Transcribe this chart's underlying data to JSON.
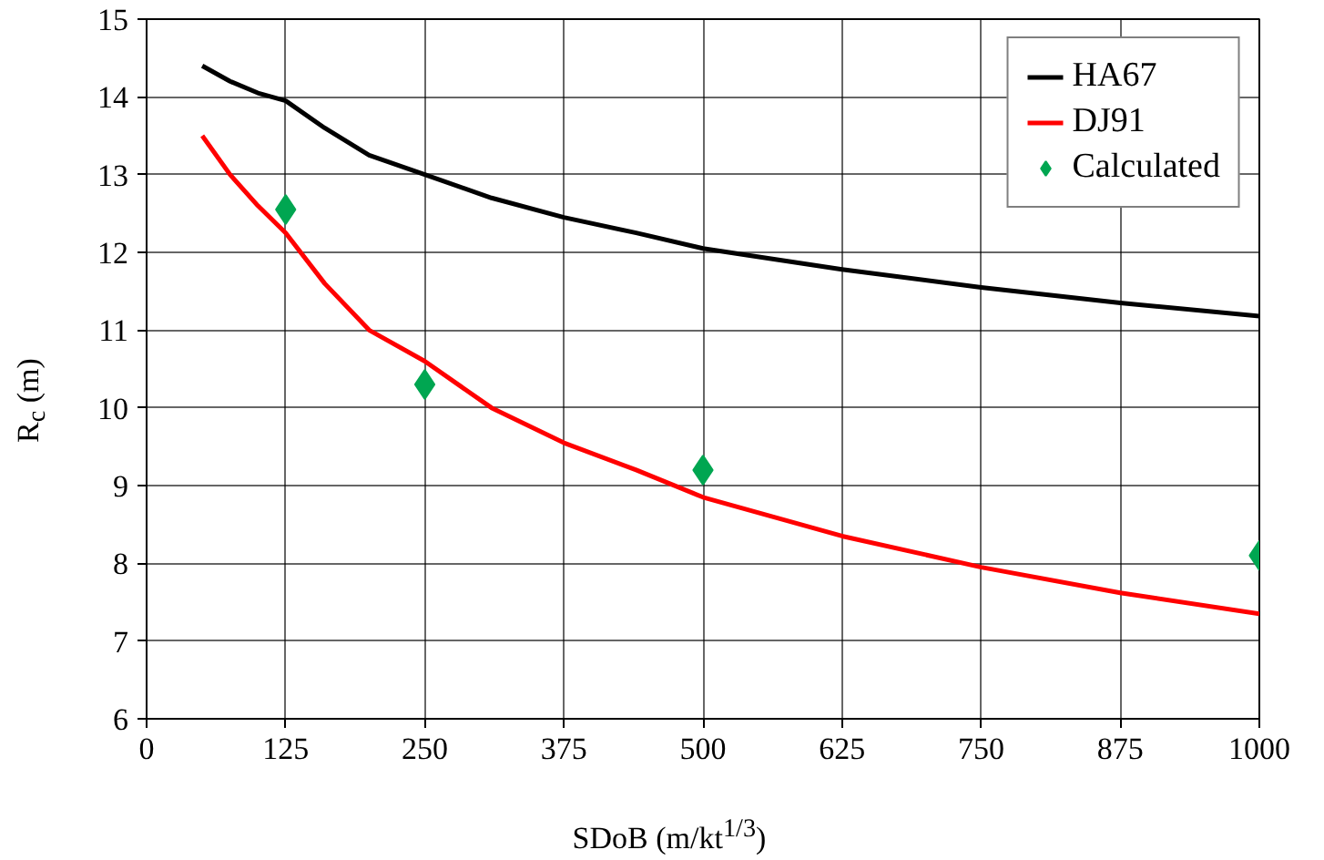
{
  "chart_data": {
    "type": "line",
    "xlabel": "SDoB (m/kt$^{1/3}$)",
    "ylabel": "R$_{c}$ (m)",
    "xlim": [
      0,
      1000
    ],
    "xticks": [
      0,
      125,
      250,
      375,
      500,
      625,
      750,
      875,
      1000
    ],
    "ylim": [
      6,
      15
    ],
    "yticks": [
      6,
      7,
      8,
      9,
      10,
      11,
      12,
      13,
      14,
      15
    ],
    "grid": true,
    "legend": "top right",
    "series": [
      {
        "name": "HA67",
        "color": "#000000",
        "x": [
          50,
          75,
          100,
          125,
          160,
          200,
          250,
          310,
          375,
          440,
          500,
          625,
          750,
          875,
          1000
        ],
        "values": [
          14.4,
          14.2,
          14.05,
          13.95,
          13.6,
          13.25,
          13.0,
          12.7,
          12.45,
          12.25,
          12.05,
          11.78,
          11.55,
          11.35,
          11.18
        ]
      },
      {
        "name": "DJ91",
        "color": "#ff0000",
        "x": [
          50,
          75,
          100,
          125,
          160,
          200,
          250,
          310,
          375,
          440,
          500,
          625,
          750,
          875,
          1000
        ],
        "values": [
          13.5,
          13.0,
          12.6,
          12.25,
          11.6,
          11.0,
          10.6,
          10.0,
          9.55,
          9.2,
          8.85,
          8.35,
          7.95,
          7.62,
          7.35
        ]
      },
      {
        "name": "Calculated",
        "color": "#00a651",
        "type": "scatter",
        "marker": "diamond",
        "x": [
          125,
          250,
          500,
          1000
        ],
        "values": [
          12.55,
          10.3,
          9.2,
          8.1
        ]
      }
    ]
  }
}
